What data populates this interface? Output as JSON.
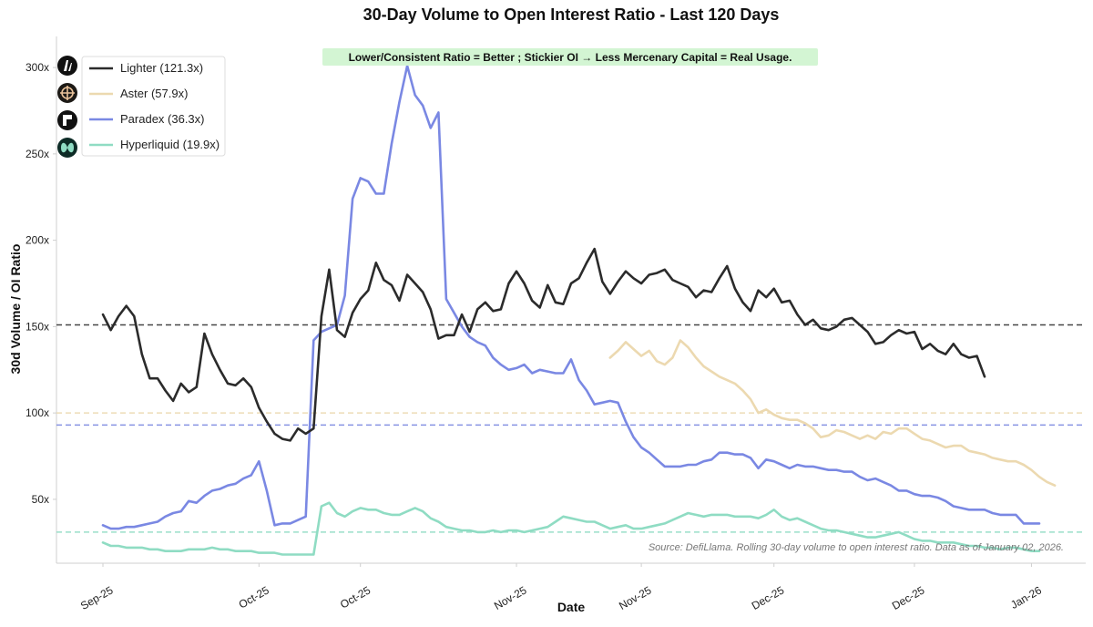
{
  "chart_data": {
    "type": "line",
    "title": "30-Day Volume to Open Interest Ratio - Last 120 Days",
    "xlabel": "Date",
    "ylabel": "30d Volume / OI Ratio",
    "x_ticks": [
      "Sep-25",
      "Oct-25",
      "Oct-25",
      "Nov-25",
      "Nov-25",
      "Dec-25",
      "Dec-25",
      "Jan-26"
    ],
    "y_ticks": [
      "50x",
      "100x",
      "150x",
      "200x",
      "250x",
      "300x"
    ],
    "y_tick_values": [
      50,
      100,
      150,
      200,
      250,
      300
    ],
    "ylim": [
      13,
      318
    ],
    "x_range": [
      0,
      120
    ],
    "x_tick_positions": [
      0,
      20,
      33,
      53,
      69,
      86,
      104,
      119
    ],
    "grid": false,
    "legend_placement": "top-left",
    "annotation": "Lower/Consistent Ratio = Better ; Stickier OI → Less Mercenary Capital = Real Usage.",
    "source": "Source: DefiLlama. Rolling 30-day volume to open interest ratio. Data as of January 02, 2026.",
    "reference_lines": [
      {
        "series": "Lighter",
        "value": 151,
        "color": "#333333"
      },
      {
        "series": "Aster",
        "value": 100,
        "color": "#ecd9b0"
      },
      {
        "series": "Paradex",
        "value": 93,
        "color": "#7b88e0"
      },
      {
        "series": "Hyperliquid",
        "value": 31,
        "color": "#8fdcc3"
      }
    ],
    "series": [
      {
        "name": "Lighter (121.3x)",
        "icon": "lighter-logo-icon",
        "color": "#2b2b2b",
        "x_start": 0,
        "values": [
          157,
          148,
          156,
          162,
          156,
          134,
          120,
          120,
          113,
          107,
          117,
          112,
          115,
          146,
          134,
          125,
          117,
          116,
          120,
          115,
          103,
          95,
          88,
          85,
          84,
          91,
          88,
          91,
          156,
          183,
          148,
          144,
          158,
          166,
          171,
          187,
          177,
          174,
          165,
          180,
          175,
          170,
          160,
          143,
          145,
          145,
          157,
          147,
          160,
          164,
          159,
          160,
          175,
          182,
          175,
          165,
          161,
          174,
          164,
          163,
          175,
          178,
          187,
          195,
          176,
          169,
          176,
          182,
          178,
          175,
          180,
          181,
          183,
          177,
          175,
          173,
          167,
          171,
          170,
          178,
          185,
          172,
          164,
          159,
          171,
          167,
          172,
          164,
          165,
          157,
          151,
          154,
          149,
          148,
          150,
          154,
          155,
          151,
          147,
          140,
          141,
          145,
          148,
          146,
          147,
          137,
          140,
          136,
          134,
          140,
          134,
          132,
          133,
          121
        ]
      },
      {
        "name": "Aster (57.9x)",
        "icon": "aster-logo-icon",
        "color": "#ecd9b0",
        "x_start": 65,
        "values": [
          132,
          136,
          141,
          137,
          133,
          136,
          130,
          128,
          132,
          142,
          138,
          132,
          127,
          124,
          121,
          119,
          117,
          113,
          108,
          100,
          102,
          99,
          97,
          96,
          96,
          94,
          91,
          86,
          87,
          90,
          89,
          87,
          85,
          87,
          85,
          89,
          88,
          91,
          91,
          88,
          85,
          84,
          82,
          80,
          81,
          81,
          78,
          77,
          76,
          74,
          73,
          72,
          72,
          70,
          67,
          63,
          60,
          58
        ]
      },
      {
        "name": "Paradex (36.3x)",
        "icon": "paradex-logo-icon",
        "color": "#7a88e3",
        "x_start": 0,
        "values": [
          35,
          33,
          33,
          34,
          34,
          35,
          36,
          37,
          40,
          42,
          43,
          49,
          48,
          52,
          55,
          56,
          58,
          59,
          62,
          64,
          72,
          55,
          35,
          36,
          36,
          38,
          40,
          142,
          147,
          149,
          151,
          168,
          224,
          236,
          234,
          227,
          227,
          256,
          280,
          301,
          284,
          278,
          265,
          274,
          166,
          158,
          150,
          144,
          141,
          139,
          132,
          128,
          125,
          126,
          128,
          123,
          125,
          124,
          123,
          123,
          131,
          119,
          113,
          105,
          106,
          107,
          106,
          95,
          86,
          80,
          77,
          73,
          69,
          69,
          69,
          70,
          70,
          72,
          73,
          77,
          77,
          76,
          76,
          74,
          68,
          73,
          72,
          70,
          68,
          70,
          69,
          69,
          68,
          67,
          67,
          66,
          66,
          63,
          61,
          62,
          60,
          58,
          55,
          55,
          53,
          52,
          52,
          51,
          49,
          46,
          45,
          44,
          44,
          44,
          42,
          41,
          41,
          41,
          36,
          36,
          36
        ]
      },
      {
        "name": "Hyperliquid (19.9x)",
        "icon": "hyperliquid-logo-icon",
        "color": "#8fdcc3",
        "x_start": 0,
        "values": [
          25,
          23,
          23,
          22,
          22,
          22,
          21,
          21,
          20,
          20,
          20,
          21,
          21,
          21,
          22,
          21,
          21,
          20,
          20,
          20,
          19,
          19,
          19,
          18,
          18,
          18,
          18,
          18,
          46,
          48,
          42,
          40,
          43,
          45,
          44,
          44,
          42,
          41,
          41,
          43,
          45,
          43,
          39,
          37,
          34,
          33,
          32,
          32,
          31,
          31,
          32,
          31,
          32,
          32,
          31,
          32,
          33,
          34,
          37,
          40,
          39,
          38,
          37,
          37,
          35,
          33,
          34,
          35,
          33,
          33,
          34,
          35,
          36,
          38,
          40,
          42,
          41,
          40,
          41,
          41,
          41,
          40,
          40,
          40,
          39,
          41,
          44,
          40,
          38,
          39,
          37,
          35,
          33,
          32,
          32,
          31,
          30,
          29,
          28,
          28,
          29,
          30,
          31,
          29,
          27,
          26,
          26,
          25,
          25,
          25,
          24,
          23,
          23,
          22,
          22,
          21,
          22,
          22,
          21,
          20,
          20
        ]
      }
    ]
  }
}
